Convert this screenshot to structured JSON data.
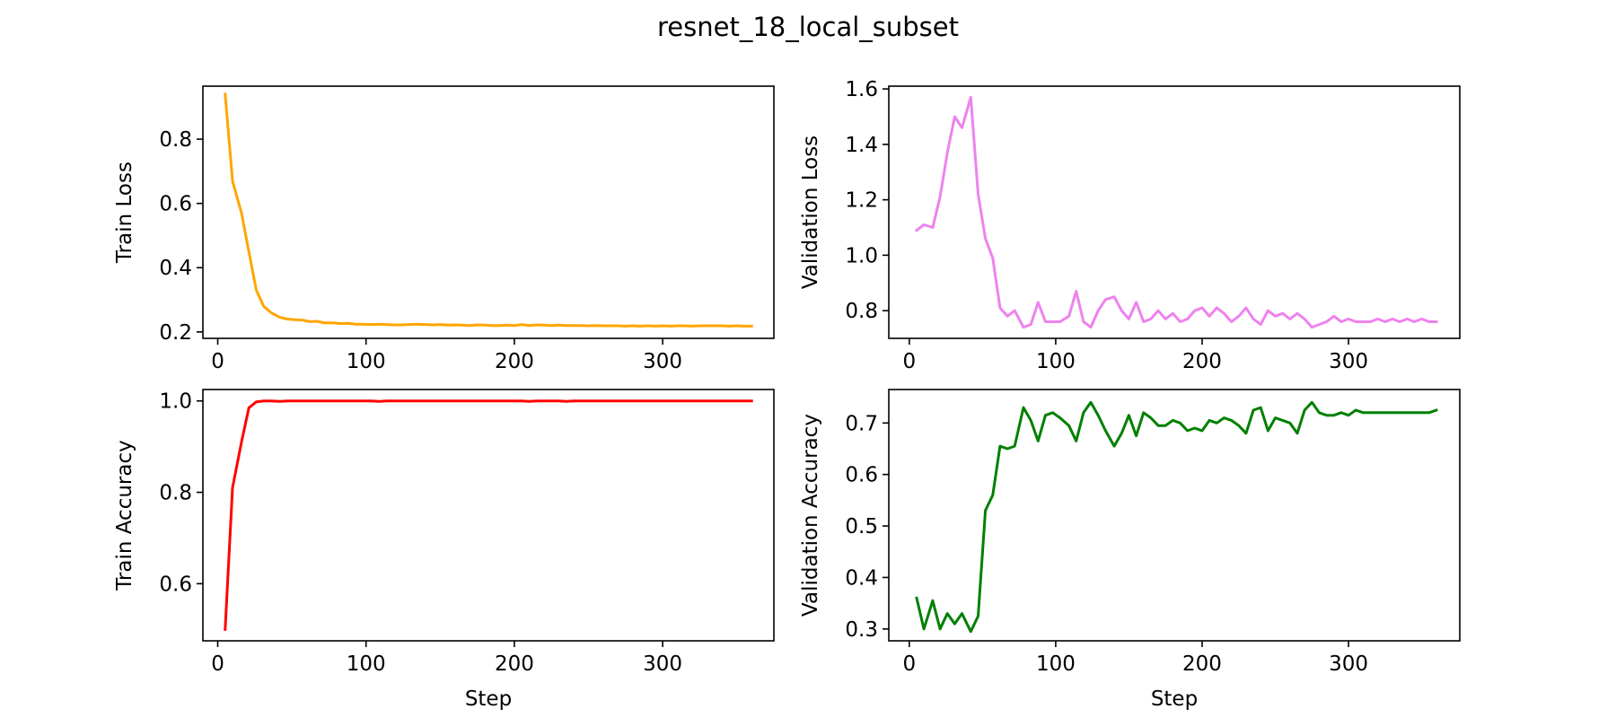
{
  "title": "resnet_18_local_subset",
  "chart_data": [
    {
      "type": "line",
      "xlabel": "",
      "ylabel": "Train Loss",
      "xlim": [
        -10,
        375
      ],
      "ylim": [
        0.18,
        0.965
      ],
      "xticks": [
        0,
        100,
        200,
        300
      ],
      "yticks": [
        0.2,
        0.4,
        0.6,
        0.8
      ],
      "color": "#ffa500",
      "series": [
        {
          "x": [
            5,
            10,
            16,
            21,
            26,
            31,
            36,
            42,
            47,
            52,
            57,
            62,
            67,
            72,
            78,
            83,
            88,
            93,
            98,
            103,
            109,
            114,
            119,
            124,
            129,
            134,
            140,
            145,
            150,
            155,
            160,
            165,
            170,
            175,
            180,
            185,
            190,
            195,
            200,
            205,
            210,
            215,
            220,
            225,
            230,
            235,
            240,
            245,
            250,
            255,
            260,
            265,
            270,
            275,
            280,
            285,
            290,
            295,
            300,
            305,
            310,
            315,
            320,
            325,
            330,
            335,
            340,
            345,
            350,
            355,
            360
          ],
          "values": [
            0.94,
            0.67,
            0.57,
            0.45,
            0.33,
            0.28,
            0.26,
            0.245,
            0.24,
            0.238,
            0.237,
            0.232,
            0.233,
            0.228,
            0.228,
            0.226,
            0.227,
            0.224,
            0.224,
            0.223,
            0.224,
            0.223,
            0.222,
            0.222,
            0.223,
            0.224,
            0.223,
            0.222,
            0.223,
            0.221,
            0.222,
            0.221,
            0.22,
            0.222,
            0.221,
            0.22,
            0.22,
            0.221,
            0.22,
            0.223,
            0.22,
            0.222,
            0.221,
            0.22,
            0.221,
            0.22,
            0.22,
            0.22,
            0.219,
            0.22,
            0.219,
            0.219,
            0.219,
            0.218,
            0.219,
            0.218,
            0.219,
            0.218,
            0.219,
            0.218,
            0.219,
            0.219,
            0.218,
            0.219,
            0.219,
            0.219,
            0.219,
            0.218,
            0.219,
            0.218,
            0.218
          ]
        }
      ]
    },
    {
      "type": "line",
      "xlabel": "",
      "ylabel": "Validation Loss",
      "xlim": [
        -14,
        376
      ],
      "ylim": [
        0.7,
        1.61
      ],
      "xticks": [
        0,
        100,
        200,
        300
      ],
      "yticks": [
        0.8,
        1.0,
        1.2,
        1.4,
        1.6
      ],
      "color": "#ee82ee",
      "series": [
        {
          "x": [
            5,
            10,
            16,
            21,
            26,
            31,
            36,
            42,
            47,
            52,
            57,
            62,
            67,
            72,
            78,
            83,
            88,
            93,
            98,
            103,
            109,
            114,
            119,
            124,
            129,
            134,
            140,
            145,
            150,
            155,
            160,
            165,
            170,
            175,
            180,
            185,
            190,
            195,
            200,
            205,
            210,
            215,
            220,
            225,
            230,
            235,
            240,
            245,
            250,
            255,
            260,
            265,
            270,
            275,
            280,
            285,
            290,
            295,
            300,
            305,
            310,
            315,
            320,
            325,
            330,
            335,
            340,
            345,
            350,
            355,
            360
          ],
          "values": [
            1.09,
            1.11,
            1.1,
            1.21,
            1.37,
            1.5,
            1.46,
            1.57,
            1.22,
            1.06,
            0.99,
            0.81,
            0.78,
            0.8,
            0.74,
            0.75,
            0.83,
            0.76,
            0.76,
            0.76,
            0.78,
            0.87,
            0.76,
            0.74,
            0.8,
            0.84,
            0.85,
            0.8,
            0.77,
            0.83,
            0.76,
            0.77,
            0.8,
            0.77,
            0.79,
            0.76,
            0.77,
            0.8,
            0.81,
            0.78,
            0.81,
            0.79,
            0.76,
            0.78,
            0.81,
            0.77,
            0.75,
            0.8,
            0.78,
            0.79,
            0.77,
            0.79,
            0.77,
            0.74,
            0.75,
            0.76,
            0.78,
            0.76,
            0.77,
            0.76,
            0.76,
            0.76,
            0.77,
            0.76,
            0.77,
            0.76,
            0.77,
            0.76,
            0.77,
            0.76,
            0.76
          ]
        }
      ]
    },
    {
      "type": "line",
      "xlabel": "Step",
      "ylabel": "Train Accuracy",
      "xlim": [
        -10,
        375
      ],
      "ylim": [
        0.475,
        1.025
      ],
      "xticks": [
        0,
        100,
        200,
        300
      ],
      "yticks": [
        0.6,
        0.8,
        1.0
      ],
      "color": "#ff0000",
      "series": [
        {
          "x": [
            5,
            10,
            16,
            21,
            26,
            31,
            36,
            42,
            47,
            52,
            57,
            62,
            67,
            72,
            78,
            83,
            88,
            93,
            98,
            103,
            109,
            114,
            119,
            124,
            129,
            134,
            140,
            145,
            150,
            155,
            160,
            165,
            170,
            175,
            180,
            185,
            190,
            195,
            200,
            205,
            210,
            215,
            220,
            225,
            230,
            235,
            240,
            245,
            250,
            255,
            260,
            265,
            270,
            275,
            280,
            285,
            290,
            295,
            300,
            305,
            310,
            315,
            320,
            325,
            330,
            335,
            340,
            345,
            350,
            355,
            360
          ],
          "values": [
            0.5,
            0.81,
            0.91,
            0.985,
            0.998,
            1.0,
            1.0,
            0.999,
            1.0,
            1.0,
            1.0,
            1.0,
            1.0,
            1.0,
            1.0,
            1.0,
            1.0,
            1.0,
            1.0,
            1.0,
            0.999,
            1.0,
            1.0,
            1.0,
            1.0,
            1.0,
            1.0,
            1.0,
            1.0,
            1.0,
            1.0,
            1.0,
            1.0,
            1.0,
            1.0,
            1.0,
            1.0,
            1.0,
            1.0,
            1.0,
            0.999,
            1.0,
            1.0,
            1.0,
            1.0,
            0.999,
            1.0,
            1.0,
            1.0,
            1.0,
            1.0,
            1.0,
            1.0,
            1.0,
            1.0,
            1.0,
            1.0,
            1.0,
            1.0,
            1.0,
            1.0,
            1.0,
            1.0,
            1.0,
            1.0,
            1.0,
            1.0,
            1.0,
            1.0,
            1.0,
            1.0
          ]
        }
      ]
    },
    {
      "type": "line",
      "xlabel": "Step",
      "ylabel": "Validation Accuracy",
      "xlim": [
        -14,
        376
      ],
      "ylim": [
        0.277,
        0.765
      ],
      "xticks": [
        0,
        100,
        200,
        300
      ],
      "yticks": [
        0.3,
        0.4,
        0.5,
        0.6,
        0.7
      ],
      "color": "#008000",
      "series": [
        {
          "x": [
            5,
            10,
            16,
            21,
            26,
            31,
            36,
            42,
            47,
            52,
            57,
            62,
            67,
            72,
            78,
            83,
            88,
            93,
            98,
            103,
            109,
            114,
            119,
            124,
            129,
            134,
            140,
            145,
            150,
            155,
            160,
            165,
            170,
            175,
            180,
            185,
            190,
            195,
            200,
            205,
            210,
            215,
            220,
            225,
            230,
            235,
            240,
            245,
            250,
            255,
            260,
            265,
            270,
            275,
            280,
            285,
            290,
            295,
            300,
            305,
            310,
            315,
            320,
            325,
            330,
            335,
            340,
            345,
            350,
            355,
            360
          ],
          "values": [
            0.36,
            0.3,
            0.355,
            0.3,
            0.33,
            0.31,
            0.33,
            0.295,
            0.325,
            0.53,
            0.56,
            0.655,
            0.65,
            0.655,
            0.73,
            0.705,
            0.665,
            0.715,
            0.72,
            0.71,
            0.695,
            0.665,
            0.72,
            0.74,
            0.715,
            0.685,
            0.655,
            0.68,
            0.715,
            0.675,
            0.72,
            0.71,
            0.695,
            0.695,
            0.705,
            0.7,
            0.685,
            0.69,
            0.685,
            0.705,
            0.7,
            0.71,
            0.705,
            0.695,
            0.68,
            0.725,
            0.73,
            0.685,
            0.71,
            0.705,
            0.7,
            0.68,
            0.725,
            0.74,
            0.72,
            0.715,
            0.715,
            0.72,
            0.715,
            0.725,
            0.72,
            0.72,
            0.72,
            0.72,
            0.72,
            0.72,
            0.72,
            0.72,
            0.72,
            0.72,
            0.725
          ]
        }
      ]
    }
  ]
}
